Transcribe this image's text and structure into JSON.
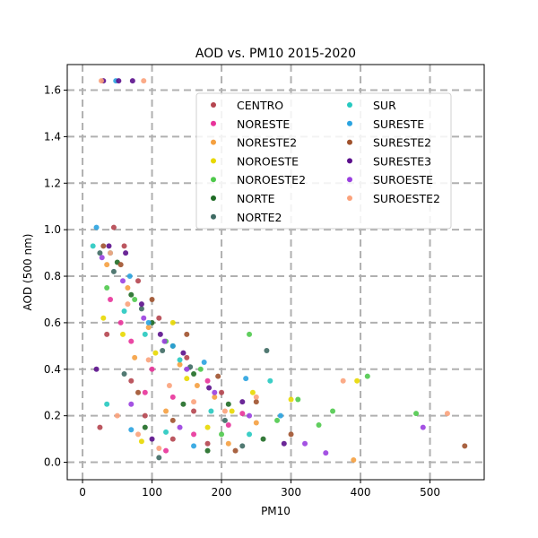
{
  "chart_data": {
    "type": "scatter",
    "title": "AOD vs. PM10 2015-2020",
    "xlabel": "PM10",
    "ylabel": "AOD (500 nm)",
    "xlim": [
      -22,
      578
    ],
    "ylim": [
      -0.075,
      1.71
    ],
    "xticks": [
      0,
      100,
      200,
      300,
      400,
      500
    ],
    "yticks": [
      0.0,
      0.2,
      0.4,
      0.6,
      0.8,
      1.0,
      1.2,
      1.4,
      1.6
    ],
    "ytick_labels": [
      "0.0",
      "0.2",
      "0.4",
      "0.6",
      "0.8",
      "1.0",
      "1.2",
      "1.4",
      "1.6"
    ],
    "grid": true,
    "grid_style": "dashed",
    "legend_position": "upper-right",
    "legend_columns": 2,
    "series": [
      {
        "name": "CENTRO",
        "color": "#b5454f",
        "points": [
          [
            45,
            1.01
          ],
          [
            60,
            0.93
          ],
          [
            80,
            0.78
          ],
          [
            110,
            0.62
          ],
          [
            35,
            0.55
          ],
          [
            150,
            0.45
          ],
          [
            200,
            0.3
          ],
          [
            90,
            0.2
          ],
          [
            130,
            0.1
          ],
          [
            70,
            0.35
          ],
          [
            160,
            0.22
          ],
          [
            25,
            0.15
          ],
          [
            180,
            0.08
          ]
        ]
      },
      {
        "name": "NORESTE",
        "color": "#e8339a",
        "points": [
          [
            40,
            0.7
          ],
          [
            70,
            0.52
          ],
          [
            100,
            0.4
          ],
          [
            130,
            0.28
          ],
          [
            180,
            0.35
          ],
          [
            230,
            0.21
          ],
          [
            160,
            0.12
          ],
          [
            55,
            0.6
          ],
          [
            210,
            0.16
          ],
          [
            120,
            0.05
          ],
          [
            90,
            0.3
          ]
        ]
      },
      {
        "name": "NORESTE2",
        "color": "#f5a040",
        "points": [
          [
            35,
            0.85
          ],
          [
            65,
            0.75
          ],
          [
            95,
            0.58
          ],
          [
            140,
            0.42
          ],
          [
            190,
            0.28
          ],
          [
            250,
            0.17
          ],
          [
            390,
            0.01
          ],
          [
            120,
            0.22
          ],
          [
            210,
            0.08
          ],
          [
            75,
            0.45
          ],
          [
            165,
            0.33
          ]
        ]
      },
      {
        "name": "NOROESTE",
        "color": "#e8d800",
        "points": [
          [
            30,
            0.62
          ],
          [
            58,
            0.55
          ],
          [
            105,
            0.47
          ],
          [
            150,
            0.36
          ],
          [
            245,
            0.3
          ],
          [
            300,
            0.27
          ],
          [
            395,
            0.35
          ],
          [
            180,
            0.15
          ],
          [
            85,
            0.09
          ],
          [
            215,
            0.22
          ],
          [
            130,
            0.6
          ]
        ]
      },
      {
        "name": "NOROESTE2",
        "color": "#4fc94c",
        "points": [
          [
            35,
            0.75
          ],
          [
            75,
            0.7
          ],
          [
            120,
            0.52
          ],
          [
            170,
            0.4
          ],
          [
            240,
            0.55
          ],
          [
            310,
            0.27
          ],
          [
            340,
            0.16
          ],
          [
            360,
            0.22
          ],
          [
            410,
            0.37
          ],
          [
            480,
            0.21
          ],
          [
            200,
            0.12
          ],
          [
            280,
            0.18
          ]
        ]
      },
      {
        "name": "NORTE",
        "color": "#1f6b25",
        "points": [
          [
            50,
            0.86
          ],
          [
            70,
            0.72
          ],
          [
            100,
            0.6
          ],
          [
            130,
            0.5
          ],
          [
            160,
            0.38
          ],
          [
            210,
            0.25
          ],
          [
            260,
            0.1
          ],
          [
            180,
            0.05
          ],
          [
            90,
            0.15
          ],
          [
            145,
            0.25
          ]
        ]
      },
      {
        "name": "NORTE2",
        "color": "#3e6a63",
        "points": [
          [
            25,
            0.9
          ],
          [
            45,
            0.82
          ],
          [
            85,
            0.66
          ],
          [
            115,
            0.48
          ],
          [
            155,
            0.41
          ],
          [
            205,
            0.18
          ],
          [
            265,
            0.48
          ],
          [
            230,
            0.07
          ],
          [
            110,
            0.02
          ],
          [
            60,
            0.38
          ]
        ]
      },
      {
        "name": "SUR",
        "color": "#26c9c0",
        "points": [
          [
            15,
            0.93
          ],
          [
            40,
            0.9
          ],
          [
            60,
            0.65
          ],
          [
            90,
            0.55
          ],
          [
            140,
            0.44
          ],
          [
            185,
            0.22
          ],
          [
            270,
            0.35
          ],
          [
            120,
            0.13
          ],
          [
            35,
            0.25
          ],
          [
            240,
            0.12
          ]
        ]
      },
      {
        "name": "SURESTE",
        "color": "#2aa3e0",
        "points": [
          [
            20,
            1.01
          ],
          [
            48,
            1.64
          ],
          [
            68,
            0.8
          ],
          [
            95,
            0.6
          ],
          [
            130,
            0.5
          ],
          [
            175,
            0.43
          ],
          [
            235,
            0.36
          ],
          [
            285,
            0.2
          ],
          [
            160,
            0.07
          ],
          [
            70,
            0.14
          ]
        ]
      },
      {
        "name": "SURESTE2",
        "color": "#a0522d",
        "points": [
          [
            30,
            0.93
          ],
          [
            55,
            0.85
          ],
          [
            100,
            0.7
          ],
          [
            150,
            0.55
          ],
          [
            195,
            0.37
          ],
          [
            250,
            0.26
          ],
          [
            300,
            0.12
          ],
          [
            550,
            0.07
          ],
          [
            130,
            0.18
          ],
          [
            80,
            0.3
          ],
          [
            220,
            0.05
          ]
        ]
      },
      {
        "name": "SURESTE3",
        "color": "#5b0f8c",
        "points": [
          [
            30,
            1.64
          ],
          [
            52,
            1.64
          ],
          [
            72,
            1.64
          ],
          [
            38,
            0.93
          ],
          [
            62,
            0.9
          ],
          [
            85,
            0.68
          ],
          [
            112,
            0.55
          ],
          [
            145,
            0.47
          ],
          [
            182,
            0.32
          ],
          [
            230,
            0.26
          ],
          [
            290,
            0.08
          ],
          [
            20,
            0.4
          ],
          [
            100,
            0.1
          ]
        ]
      },
      {
        "name": "SUROESTE",
        "color": "#9a3fe0",
        "points": [
          [
            28,
            0.88
          ],
          [
            58,
            0.78
          ],
          [
            88,
            0.62
          ],
          [
            118,
            0.52
          ],
          [
            150,
            0.4
          ],
          [
            190,
            0.3
          ],
          [
            240,
            0.2
          ],
          [
            320,
            0.08
          ],
          [
            350,
            0.04
          ],
          [
            490,
            0.15
          ],
          [
            70,
            0.25
          ],
          [
            140,
            0.15
          ]
        ]
      },
      {
        "name": "SUROESTE2",
        "color": "#fba27b",
        "points": [
          [
            27,
            1.64
          ],
          [
            88,
            1.64
          ],
          [
            40,
            0.9
          ],
          [
            65,
            0.68
          ],
          [
            95,
            0.44
          ],
          [
            125,
            0.33
          ],
          [
            160,
            0.26
          ],
          [
            205,
            0.22
          ],
          [
            250,
            0.28
          ],
          [
            375,
            0.35
          ],
          [
            525,
            0.21
          ],
          [
            50,
            0.2
          ],
          [
            80,
            0.12
          ],
          [
            110,
            0.06
          ]
        ]
      }
    ]
  }
}
